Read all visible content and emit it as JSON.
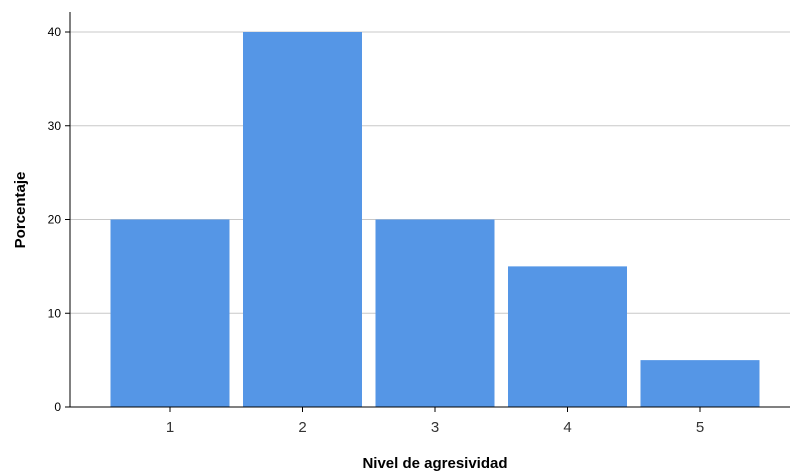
{
  "chart_data": {
    "type": "bar",
    "categories": [
      "1",
      "2",
      "3",
      "4",
      "5"
    ],
    "values": [
      20,
      40,
      20,
      15,
      5
    ],
    "title": "",
    "xlabel": "Nivel de agresividad",
    "ylabel": "Porcentaje",
    "ylim": [
      0,
      40
    ],
    "yticks": [
      0,
      10,
      20,
      30,
      40
    ],
    "grid": true,
    "bar_color": "#5596e6",
    "grid_color": "#c8c8c8"
  }
}
